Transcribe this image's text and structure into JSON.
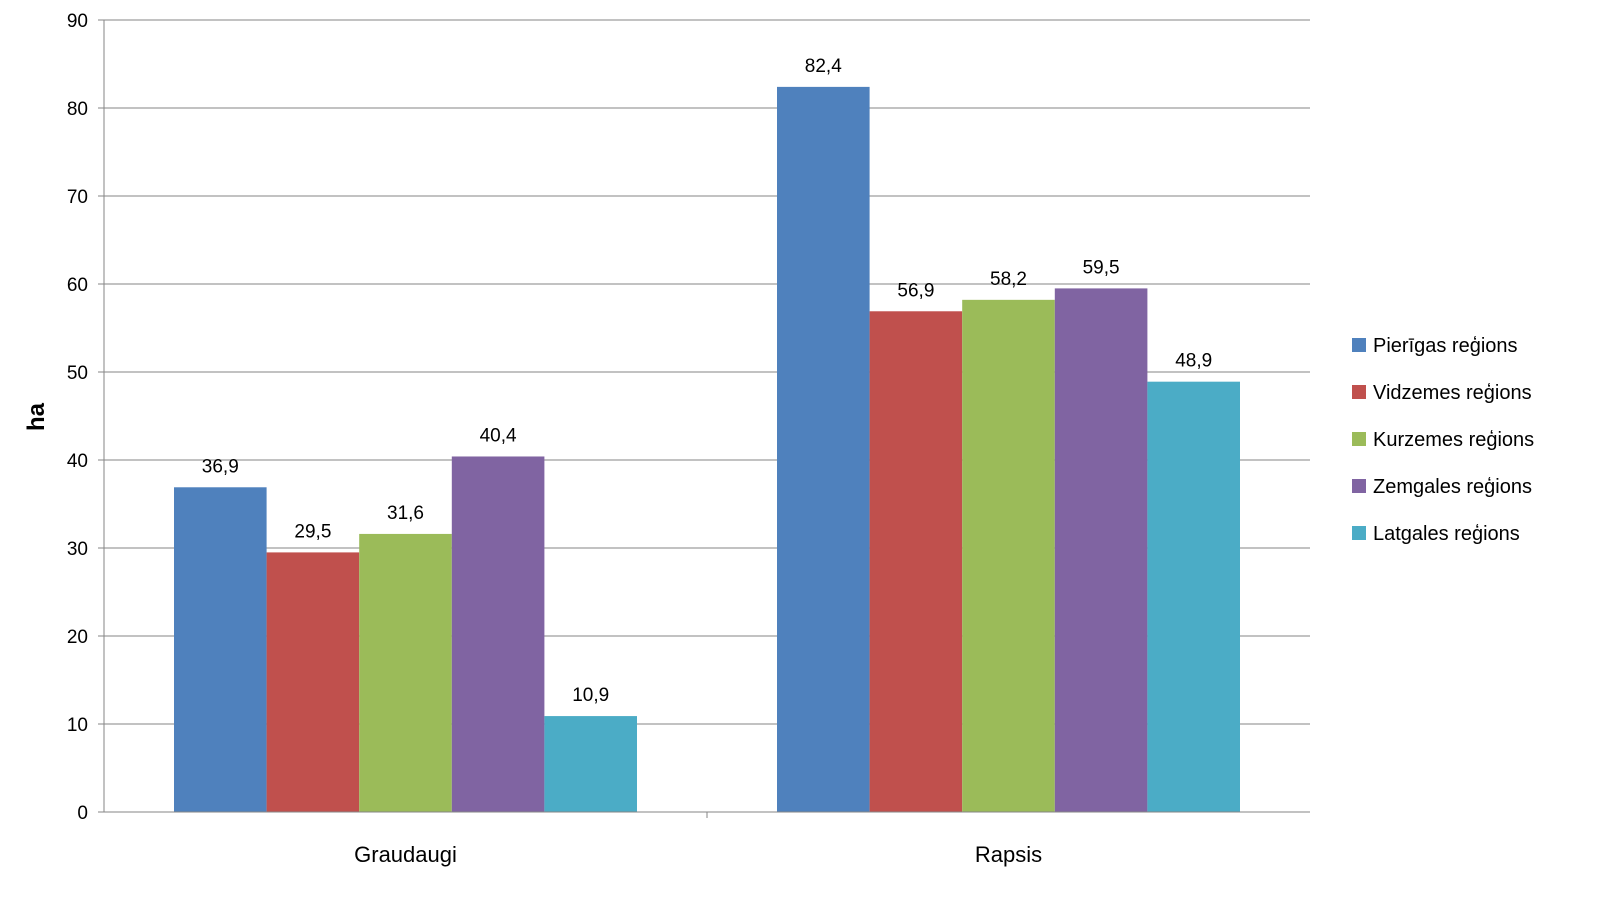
{
  "chart_data": {
    "type": "bar",
    "title": "",
    "xlabel": "",
    "ylabel": "ha",
    "ylim": [
      0,
      90
    ],
    "ytick_step": 10,
    "grid": true,
    "legend_position": "right",
    "categories": [
      "Graudaugi",
      "Rapsis"
    ],
    "series": [
      {
        "name": "Pierīgas reģions",
        "color": "#4F81BD",
        "values": [
          36.9,
          82.4
        ],
        "labels": [
          "36,9",
          "82,4"
        ]
      },
      {
        "name": "Vidzemes reģions",
        "color": "#C0504D",
        "values": [
          29.5,
          56.9
        ],
        "labels": [
          "29,5",
          "56,9"
        ]
      },
      {
        "name": "Kurzemes reģions",
        "color": "#9BBB59",
        "values": [
          31.6,
          58.2
        ],
        "labels": [
          "31,6",
          "58,2"
        ]
      },
      {
        "name": "Zemgales reģions",
        "color": "#8064A2",
        "values": [
          40.4,
          59.5
        ],
        "labels": [
          "40,4",
          "59,5"
        ]
      },
      {
        "name": "Latgales reģions",
        "color": "#4BACC6",
        "values": [
          10.9,
          48.9
        ],
        "labels": [
          "10,9",
          "48,9"
        ]
      }
    ]
  }
}
